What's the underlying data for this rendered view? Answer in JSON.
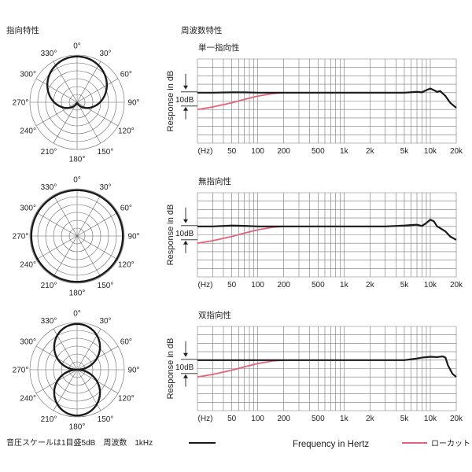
{
  "headers": {
    "polar": "指向特性",
    "frequency": "周波数特性"
  },
  "polar_angle_labels": [
    "0°",
    "30°",
    "60°",
    "90°",
    "120°",
    "150°",
    "180°",
    "210°",
    "240°",
    "270°",
    "300°",
    "330°"
  ],
  "frequency_axis": {
    "ylabel": "Response in dB",
    "reference_label": "10dB",
    "tick_labels": [
      {
        "label": "(Hz)",
        "freq": 20
      },
      {
        "label": "50",
        "freq": 50
      },
      {
        "label": "100",
        "freq": 100
      },
      {
        "label": "200",
        "freq": 200
      },
      {
        "label": "500",
        "freq": 500
      },
      {
        "label": "1k",
        "freq": 1000
      },
      {
        "label": "2k",
        "freq": 2000
      },
      {
        "label": "5k",
        "freq": 5000
      },
      {
        "label": "10k",
        "freq": 10000
      },
      {
        "label": "20k",
        "freq": 20000
      }
    ]
  },
  "footer": {
    "scale_note": "音圧スケールは1目盛5dB　周波数　1kHz",
    "xlabel": "Frequency in Hertz",
    "lowcut_legend": "ローカット",
    "line_color": "#1a1a1a",
    "lowcut_color": "#e8607a"
  },
  "chart_data": [
    {
      "type": "line",
      "subtype": "polar",
      "pattern": "cardioid",
      "angle_ticks_deg": [
        0,
        30,
        60,
        90,
        120,
        150,
        180,
        210,
        240,
        270,
        300,
        330
      ],
      "theta_deg": [
        0,
        30,
        60,
        90,
        120,
        150,
        180,
        210,
        240,
        270,
        300,
        330
      ],
      "r": [
        1.0,
        0.93,
        0.75,
        0.5,
        0.25,
        0.07,
        0.0,
        0.07,
        0.25,
        0.5,
        0.75,
        0.93
      ]
    },
    {
      "type": "line",
      "mode_label": "単一指向性",
      "xscale": "log",
      "xlim": [
        20,
        20000
      ],
      "series": [
        {
          "freq": [
            20,
            30,
            50,
            70,
            100,
            150,
            200,
            300,
            500,
            700,
            1000,
            2000,
            3000,
            5000,
            7000,
            8000,
            9000,
            10000,
            11000,
            12000,
            13000,
            15000,
            17000,
            20000
          ],
          "db": [
            0,
            0,
            0.2,
            0.2,
            0,
            0,
            0,
            0,
            0,
            0,
            0,
            0,
            0,
            0,
            0.5,
            0.2,
            1.5,
            2.5,
            1.5,
            0.5,
            1.0,
            -2,
            -6,
            -9
          ]
        },
        {
          "freq": [
            20,
            30,
            50,
            70,
            100,
            150,
            200
          ],
          "db": [
            -10,
            -8.5,
            -6,
            -4,
            -2,
            -0.5,
            0
          ]
        }
      ]
    },
    {
      "type": "line",
      "subtype": "polar",
      "pattern": "omnidirectional",
      "angle_ticks_deg": [
        0,
        30,
        60,
        90,
        120,
        150,
        180,
        210,
        240,
        270,
        300,
        330
      ],
      "theta_deg": [
        0,
        30,
        60,
        90,
        120,
        150,
        180,
        210,
        240,
        270,
        300,
        330
      ],
      "r": [
        1.0,
        1.0,
        1.0,
        1.0,
        1.0,
        1.0,
        1.0,
        1.0,
        1.0,
        1.0,
        1.0,
        1.0
      ]
    },
    {
      "type": "line",
      "mode_label": "無指向性",
      "xscale": "log",
      "xlim": [
        20,
        20000
      ],
      "series": [
        {
          "freq": [
            20,
            30,
            50,
            70,
            100,
            150,
            200,
            300,
            500,
            700,
            1000,
            2000,
            3000,
            5000,
            7000,
            8000,
            9000,
            10000,
            11000,
            12000,
            13000,
            15000,
            17000,
            20000
          ],
          "db": [
            0,
            0,
            0.5,
            0.3,
            0,
            0,
            0,
            0,
            0,
            0,
            0,
            0,
            0,
            0.5,
            1.0,
            0.3,
            2.0,
            4.0,
            3.0,
            0,
            -1,
            -3,
            -6,
            -8
          ]
        },
        {
          "freq": [
            20,
            30,
            50,
            70,
            100,
            150,
            200
          ],
          "db": [
            -10,
            -8.5,
            -6,
            -4,
            -2,
            -0.5,
            0
          ]
        }
      ]
    },
    {
      "type": "line",
      "subtype": "polar",
      "pattern": "figure-8",
      "angle_ticks_deg": [
        0,
        30,
        60,
        90,
        120,
        150,
        180,
        210,
        240,
        270,
        300,
        330
      ],
      "theta_deg": [
        0,
        30,
        60,
        90,
        120,
        150,
        180,
        210,
        240,
        270,
        300,
        330
      ],
      "r": [
        1.0,
        0.87,
        0.5,
        0.0,
        0.5,
        0.87,
        1.0,
        0.87,
        0.5,
        0.0,
        0.5,
        0.87
      ]
    },
    {
      "type": "line",
      "mode_label": "双指向性",
      "xscale": "log",
      "xlim": [
        20,
        20000
      ],
      "series": [
        {
          "freq": [
            20,
            30,
            50,
            70,
            100,
            150,
            200,
            300,
            500,
            700,
            1000,
            2000,
            3000,
            5000,
            7000,
            8000,
            10000,
            12000,
            14000,
            15000,
            16000,
            18000,
            20000
          ],
          "db": [
            0,
            0,
            0,
            0,
            0,
            0,
            0,
            0,
            0,
            0,
            0,
            0,
            0,
            0,
            1.0,
            1.5,
            2.0,
            1.8,
            2.2,
            1.5,
            -3,
            -8,
            -10
          ]
        },
        {
          "freq": [
            20,
            30,
            50,
            70,
            100,
            150,
            200
          ],
          "db": [
            -10,
            -8.5,
            -6,
            -4,
            -2,
            -0.5,
            0
          ]
        }
      ]
    }
  ]
}
